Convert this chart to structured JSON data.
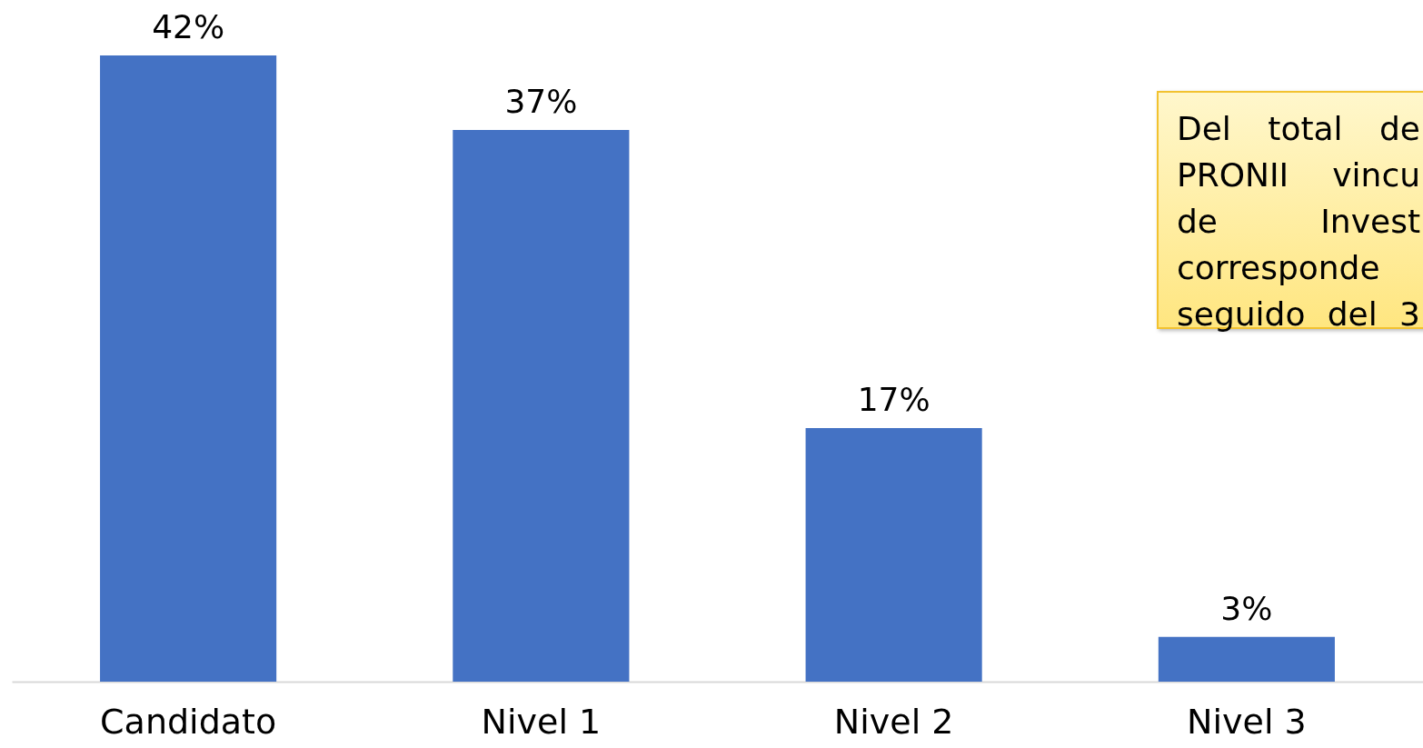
{
  "chart_data": {
    "type": "bar",
    "categories": [
      "Candidato",
      "Nivel 1",
      "Nivel 2",
      "Nivel 3"
    ],
    "values": [
      42,
      37,
      17,
      3
    ],
    "value_labels": [
      "42%",
      "37%",
      "17%",
      "3%"
    ],
    "color": "#4472c4",
    "annotations": [
      "Del total de\nPRONII vincu\nde Invest\ncorresponde\nseguido del 3"
    ]
  }
}
